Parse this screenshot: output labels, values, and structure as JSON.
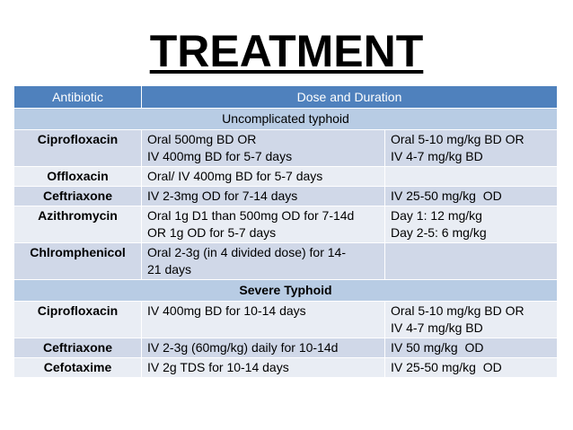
{
  "header": {
    "title": "TREATMENT"
  },
  "table": {
    "columns": [
      "Antibiotic",
      "Dose and Duration"
    ],
    "sections": [
      {
        "title": "Uncomplicated typhoid",
        "rows": [
          {
            "drug": "Ciprofloxacin",
            "dose": [
              "Oral 500mg BD OR",
              "IV 400mg BD for 5-7 days"
            ],
            "child": [
              "Oral 5-10 mg/kg BD OR",
              "IV 4-7 mg/kg BD"
            ]
          },
          {
            "drug": "Offloxacin",
            "dose": [
              "Oral/ IV 400mg BD for 5-7 days"
            ]
          },
          {
            "drug": "Ceftriaxone",
            "dose": [
              "IV 2-3mg OD for 7-14 days"
            ],
            "child": [
              "IV 25-50 mg/kg  OD"
            ]
          },
          {
            "drug": "Azithromycin",
            "dose": [
              "Oral 1g D1 than 500mg OD for 7-14d",
              "OR 1g OD for 5-7 days"
            ],
            "child": [
              "Day 1: 12 mg/kg",
              "Day 2-5: 6 mg/kg"
            ]
          },
          {
            "drug": "Chlromphenicol",
            "dose": [
              "Oral 2-3g (in 4 divided dose) for 14-",
              "21 days"
            ]
          }
        ]
      },
      {
        "title": "Severe Typhoid",
        "rows": [
          {
            "drug": "Ciprofloxacin",
            "dose": [
              "IV 400mg BD for 10-14 days"
            ],
            "child": [
              "Oral 5-10 mg/kg BD OR",
              "IV 4-7 mg/kg BD"
            ]
          },
          {
            "drug": "Ceftriaxone",
            "dose": [
              "IV 2-3g (60mg/kg) daily for 10-14d"
            ],
            "child": [
              "IV 50 mg/kg  OD"
            ]
          },
          {
            "drug": "Cefotaxime",
            "dose": [
              "IV 2g TDS for 10-14 days"
            ],
            "child": [
              "IV 25-50 mg/kg  OD"
            ]
          }
        ]
      }
    ]
  }
}
